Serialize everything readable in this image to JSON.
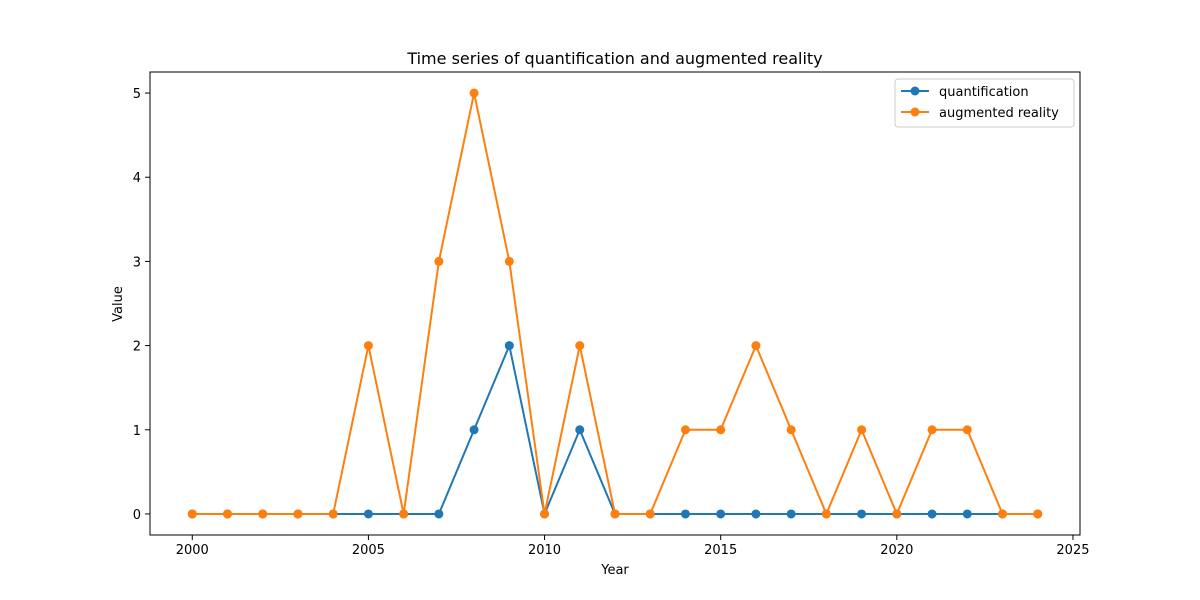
{
  "chart_data": {
    "type": "line",
    "title": "Time series of quantification and augmented reality",
    "xlabel": "Year",
    "ylabel": "Value",
    "x": [
      2000,
      2001,
      2002,
      2003,
      2004,
      2005,
      2006,
      2007,
      2008,
      2009,
      2010,
      2011,
      2012,
      2013,
      2014,
      2015,
      2016,
      2017,
      2018,
      2019,
      2020,
      2021,
      2022,
      2023,
      2024
    ],
    "series": [
      {
        "name": "quantification",
        "color": "#1f77b4",
        "values": [
          0,
          0,
          0,
          0,
          0,
          0,
          0,
          0,
          1,
          2,
          0,
          1,
          0,
          0,
          0,
          0,
          0,
          0,
          0,
          0,
          0,
          0,
          0,
          0,
          0
        ]
      },
      {
        "name": "augmented reality",
        "color": "#ff7f0e",
        "values": [
          0,
          0,
          0,
          0,
          0,
          2,
          0,
          3,
          5,
          3,
          0,
          2,
          0,
          0,
          1,
          1,
          2,
          1,
          0,
          1,
          0,
          1,
          1,
          0,
          0
        ]
      }
    ],
    "xticks": [
      2000,
      2005,
      2010,
      2015,
      2020,
      2025
    ],
    "yticks": [
      0,
      1,
      2,
      3,
      4,
      5
    ],
    "xlim": [
      1998.8,
      2025.2
    ],
    "ylim": [
      -0.25,
      5.25
    ],
    "grid": false,
    "legend": "top-right",
    "marker": "circle"
  }
}
